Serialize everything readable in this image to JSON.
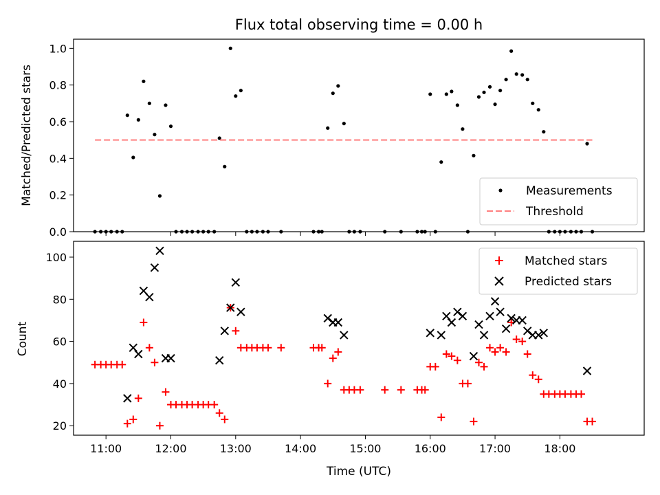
{
  "chart_data": [
    {
      "type": "scatter",
      "title": "Flux total observing time = 0.00 h",
      "xlabel": "",
      "ylabel": "Matched/Predicted stars",
      "xlim": [
        10.5,
        19.3
      ],
      "ylim": [
        0,
        1.05
      ],
      "yticks": [
        0.0,
        0.2,
        0.4,
        0.6,
        0.8,
        1.0
      ],
      "ytick_labels": [
        "0.0",
        "0.2",
        "0.4",
        "0.6",
        "0.8",
        "1.0"
      ],
      "legend_position": "lower right",
      "series": [
        {
          "name": "Measurements",
          "marker": "dot",
          "color": "#000000",
          "x": [
            10.83,
            10.92,
            11.0,
            11.08,
            11.17,
            11.25,
            11.33,
            11.42,
            11.5,
            11.58,
            11.67,
            11.75,
            11.83,
            11.92,
            12.0,
            12.08,
            12.17,
            12.25,
            12.33,
            12.42,
            12.5,
            12.58,
            12.67,
            12.75,
            12.83,
            12.92,
            13.0,
            13.08,
            13.17,
            13.25,
            13.33,
            13.42,
            13.5,
            13.7,
            14.2,
            14.28,
            14.33,
            14.42,
            14.5,
            14.58,
            14.67,
            14.75,
            14.83,
            14.92,
            15.3,
            15.55,
            15.8,
            15.87,
            15.92,
            16.0,
            16.08,
            16.17,
            16.25,
            16.33,
            16.42,
            16.5,
            16.58,
            16.67,
            16.75,
            16.83,
            16.92,
            17.0,
            17.08,
            17.17,
            17.25,
            17.33,
            17.42,
            17.5,
            17.58,
            17.67,
            17.75,
            17.83,
            17.92,
            18.0,
            18.08,
            18.17,
            18.25,
            18.33,
            18.42,
            18.5
          ],
          "y": [
            0,
            0,
            0,
            0,
            0,
            0,
            0.635,
            0.405,
            0.61,
            0.82,
            0.7,
            0.53,
            0.195,
            0.69,
            0.575,
            0,
            0,
            0,
            0,
            0,
            0,
            0,
            0,
            0.51,
            0.355,
            1.0,
            0.74,
            0.77,
            0,
            0,
            0,
            0,
            0,
            0,
            0,
            0,
            0,
            0.565,
            0.755,
            0.795,
            0.59,
            0,
            0,
            0,
            0,
            0,
            0,
            0,
            0,
            0.75,
            0,
            0.38,
            0.75,
            0.765,
            0.69,
            0.56,
            0,
            0.415,
            0.735,
            0.76,
            0.79,
            0.695,
            0.77,
            0.83,
            0.985,
            0.86,
            0.855,
            0.83,
            0.7,
            0.665,
            0.545,
            0,
            0,
            0,
            0,
            0,
            0,
            0,
            0.48,
            0
          ]
        },
        {
          "name": "Threshold",
          "marker": "dashed-line",
          "color": "#ff7f7f",
          "x": [
            10.83,
            18.5
          ],
          "y": [
            0.5,
            0.5
          ]
        }
      ]
    },
    {
      "type": "scatter",
      "title": "",
      "xlabel": "Time (UTC)",
      "ylabel": "Count",
      "xlim": [
        10.5,
        19.3
      ],
      "ylim": [
        15.5,
        107.5
      ],
      "xticks": [
        11,
        12,
        13,
        14,
        15,
        16,
        17,
        18
      ],
      "xtick_labels": [
        "11:00",
        "12:00",
        "13:00",
        "14:00",
        "15:00",
        "16:00",
        "17:00",
        "18:00"
      ],
      "yticks": [
        20,
        40,
        60,
        80,
        100
      ],
      "ytick_labels": [
        "20",
        "40",
        "60",
        "80",
        "100"
      ],
      "legend_position": "upper right",
      "series": [
        {
          "name": "Matched stars",
          "marker": "plus",
          "color": "#ff0000",
          "x": [
            10.83,
            10.92,
            11.0,
            11.08,
            11.17,
            11.25,
            11.33,
            11.42,
            11.5,
            11.58,
            11.67,
            11.75,
            11.83,
            11.92,
            12.0,
            12.08,
            12.17,
            12.25,
            12.33,
            12.42,
            12.5,
            12.58,
            12.67,
            12.75,
            12.83,
            12.92,
            13.0,
            13.08,
            13.17,
            13.25,
            13.33,
            13.42,
            13.5,
            13.7,
            14.2,
            14.28,
            14.33,
            14.42,
            14.5,
            14.58,
            14.67,
            14.75,
            14.83,
            14.92,
            15.3,
            15.55,
            15.8,
            15.87,
            15.92,
            16.0,
            16.08,
            16.17,
            16.25,
            16.33,
            16.42,
            16.5,
            16.58,
            16.67,
            16.75,
            16.83,
            16.92,
            17.0,
            17.08,
            17.17,
            17.25,
            17.33,
            17.42,
            17.5,
            17.58,
            17.67,
            17.75,
            17.83,
            17.92,
            18.0,
            18.08,
            18.17,
            18.25,
            18.33,
            18.42,
            18.5
          ],
          "y": [
            49,
            49,
            49,
            49,
            49,
            49,
            21,
            23,
            33,
            69,
            57,
            50,
            20,
            36,
            30,
            30,
            30,
            30,
            30,
            30,
            30,
            30,
            30,
            26,
            23,
            76,
            65,
            57,
            57,
            57,
            57,
            57,
            57,
            57,
            57,
            57,
            57,
            40,
            52,
            55,
            37,
            37,
            37,
            37,
            37,
            37,
            37,
            37,
            37,
            48,
            48,
            24,
            54,
            53,
            51,
            40,
            40,
            22,
            50,
            48,
            57,
            55,
            57,
            55,
            69,
            61,
            60,
            54,
            44,
            42,
            35,
            35,
            35,
            35,
            35,
            35,
            35,
            35,
            22,
            22
          ]
        },
        {
          "name": "Predicted stars",
          "marker": "x",
          "color": "#000000",
          "x": [
            11.33,
            11.42,
            11.5,
            11.58,
            11.67,
            11.75,
            11.83,
            11.92,
            12.0,
            12.75,
            12.83,
            12.92,
            13.0,
            13.08,
            14.42,
            14.5,
            14.58,
            14.67,
            16.0,
            16.17,
            16.25,
            16.33,
            16.42,
            16.5,
            16.67,
            16.75,
            16.83,
            16.92,
            17.0,
            17.08,
            17.17,
            17.25,
            17.33,
            17.42,
            17.5,
            17.58,
            17.67,
            17.75,
            18.42
          ],
          "y": [
            33,
            57,
            54,
            84,
            81,
            95,
            103,
            52,
            52,
            51,
            65,
            76,
            88,
            74,
            71,
            69,
            69,
            63,
            64,
            63,
            72,
            69,
            74,
            72,
            53,
            68,
            63,
            72,
            79,
            74,
            66,
            71,
            70,
            70,
            65,
            63,
            63,
            64,
            46
          ]
        }
      ]
    }
  ]
}
